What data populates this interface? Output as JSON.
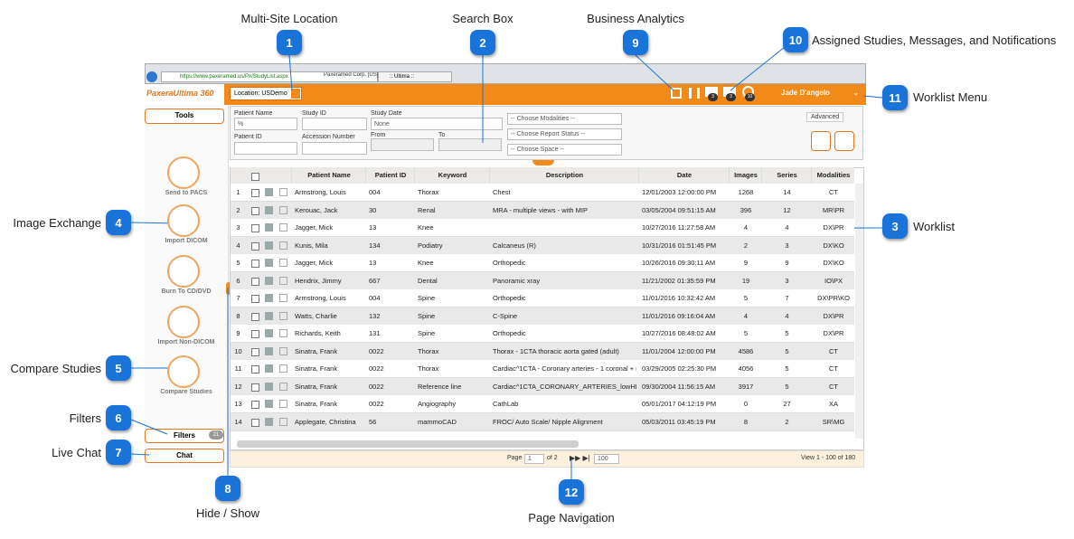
{
  "callouts": [
    {
      "number": 1,
      "label": "Multi-Site Location"
    },
    {
      "number": 2,
      "label": "Search Box"
    },
    {
      "number": 9,
      "label": "Business Analytics"
    },
    {
      "number": 10,
      "label": "Assigned Studies, Messages, and Notifications"
    },
    {
      "number": 11,
      "label": "Worklist Menu"
    },
    {
      "number": 3,
      "label": "Worklist"
    },
    {
      "number": 4,
      "label": "Image Exchange"
    },
    {
      "number": 5,
      "label": "Compare Studies"
    },
    {
      "number": 6,
      "label": "Filters"
    },
    {
      "number": 7,
      "label": "Live Chat"
    },
    {
      "number": 8,
      "label": "Hide / Show"
    },
    {
      "number": 12,
      "label": "Page Navigation"
    }
  ],
  "browser": {
    "url": "https://www.paxeramed.us/Px/StudyList.aspx",
    "site": "Paxeramed Corp. [US]",
    "tab": ":: Ultima ::"
  },
  "header": {
    "logo": "PaxeraUltima 360",
    "location": "Location: USDemo",
    "badges": [
      3,
      3,
      10
    ],
    "user": "Jade D'angelo"
  },
  "sidebar": {
    "tools": "Tools",
    "items": [
      "Send to PACS",
      "Import DICOM",
      "Burn To CD/DVD",
      "Import Non-DICOM",
      "Compare Studies"
    ],
    "filters": "Filters",
    "filters_count": 21,
    "chat": "Chat"
  },
  "search": {
    "patient_name": "Patient Name",
    "patient_name_value": "%",
    "study_id": "Study ID",
    "study_date": "Study Date",
    "study_date_value": "None",
    "patient_id": "Patient ID",
    "accession": "Accession Number",
    "from": "From",
    "to": "To",
    "dropdowns": [
      "-- Choose Modalities --",
      "-- Choose Report Status --",
      "-- Choose Space --"
    ],
    "advanced": "Advanced"
  },
  "table": {
    "columns": [
      "Patient Name",
      "Patient ID",
      "Keyword",
      "Description",
      "Date",
      "Images",
      "Series",
      "Modalities"
    ],
    "rows": [
      [
        1,
        "Armstrong, Louis",
        "004",
        "Thorax",
        "Chest",
        "12/01/2003 12:00:00 PM",
        1268,
        14,
        "CT"
      ],
      [
        2,
        "Kerouac, Jack",
        "30",
        "Renal",
        "MRA - multiple views - with MIP",
        "03/05/2004 09:51:15 AM",
        396,
        12,
        "MR\\PR"
      ],
      [
        3,
        "Jagger, Mick",
        "13",
        "Knee",
        null,
        "10/27/2016 11:27:58 AM",
        4,
        4,
        "DX\\PR"
      ],
      [
        4,
        "Kunis, Mila",
        "134",
        "Podiatry",
        "Calcaneus (R)",
        "10/31/2016 01:51:45 PM",
        2,
        3,
        "DX\\KO"
      ],
      [
        5,
        "Jagger, Mick",
        "13",
        "Knee",
        "Orthopedic",
        "10/26/2016 09:30:11 AM",
        9,
        9,
        "DX\\KO"
      ],
      [
        6,
        "Hendrix, Jimmy",
        "667",
        "Dental",
        "Panoramic xray",
        "11/21/2002 01:35:59 PM",
        19,
        3,
        "IO\\PX"
      ],
      [
        7,
        "Armstrong, Louis",
        "004",
        "Spine",
        "Orthopedic",
        "11/01/2016 10:32:42 AM",
        5,
        7,
        "DX\\PR\\KO"
      ],
      [
        8,
        "Watts, Charlie",
        "132",
        "Spine",
        "C-Spine",
        "11/01/2016 09:16:04 AM",
        4,
        4,
        "DX\\PR"
      ],
      [
        9,
        "Richards, Keith",
        "131",
        "Spine",
        "Orthopedic",
        "10/27/2016 08:48:02 AM",
        5,
        5,
        "DX\\PR"
      ],
      [
        10,
        "Sinatra, Frank",
        "0022",
        "Thorax",
        "Thorax - 1CTA thoracic aorta gated (adult)",
        "11/01/2004 12:00:00 PM",
        4586,
        5,
        "CT"
      ],
      [
        11,
        "Sinatra, Frank",
        "0022",
        "Thorax",
        "Cardiac^1CTA - Coronary arteries - 1 coronal + m",
        "03/29/2005 02:25:30 PM",
        4056,
        5,
        "CT"
      ],
      [
        12,
        "Sinatra, Frank",
        "0022",
        "Reference line",
        "Cardiac^1CTA_CORONARY_ARTERIES_lowHR",
        "09/30/2004 11:56:15 AM",
        3917,
        5,
        "CT"
      ],
      [
        13,
        "Sinatra, Frank",
        "0022",
        "Angiography",
        "CathLab",
        "05/01/2017 04:12:19 PM",
        0,
        27,
        "XA"
      ],
      [
        14,
        "Applegate, Christina",
        "56",
        "mammoCAD",
        "FROC/ Auto Scale/ Nipple Alignment",
        "05/03/2011 03:45:19 PM",
        8,
        2,
        "SR\\MG"
      ]
    ]
  },
  "pager": {
    "page": "Page",
    "current": 1,
    "of": "of 2",
    "size": 100,
    "view": "View 1 - 100 of 180"
  }
}
